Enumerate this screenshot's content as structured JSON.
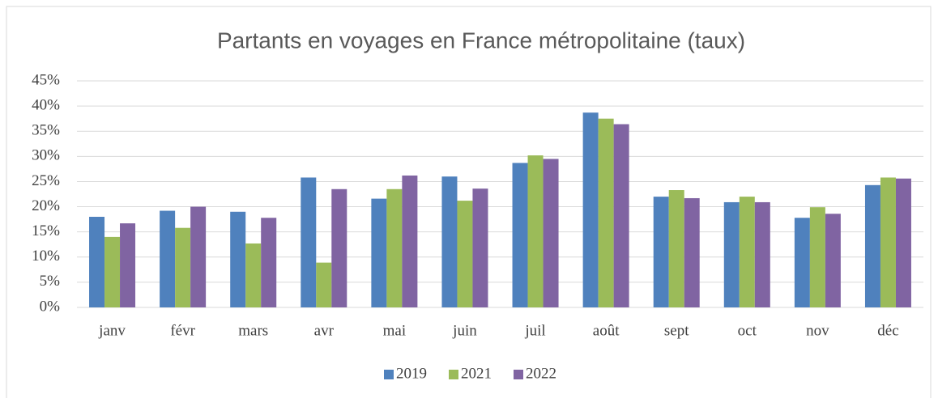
{
  "chart_data": {
    "type": "bar",
    "title": "Partants en voyages en France métropolitaine (taux)",
    "categories": [
      "janv",
      "févr",
      "mars",
      "avr",
      "mai",
      "juin",
      "juil",
      "août",
      "sept",
      "oct",
      "nov",
      "déc"
    ],
    "series": [
      {
        "name": "2019",
        "color": "#4f81bd",
        "values": [
          18,
          19.2,
          19,
          25.8,
          21.6,
          26,
          28.7,
          38.7,
          22,
          20.9,
          17.8,
          24.3
        ]
      },
      {
        "name": "2021",
        "color": "#9bbb59",
        "values": [
          14,
          15.8,
          12.7,
          8.9,
          23.5,
          21.2,
          30.2,
          37.5,
          23.3,
          22,
          19.9,
          25.8
        ]
      },
      {
        "name": "2022",
        "color": "#8064a2",
        "values": [
          16.7,
          20,
          17.8,
          23.5,
          26.2,
          23.6,
          29.5,
          36.4,
          21.7,
          20.9,
          18.6,
          25.6
        ]
      }
    ],
    "ylim": [
      0,
      45
    ],
    "yticks": [
      {
        "value": 0,
        "label": "0%"
      },
      {
        "value": 5,
        "label": "5%"
      },
      {
        "value": 10,
        "label": "10%"
      },
      {
        "value": 15,
        "label": "15%"
      },
      {
        "value": 20,
        "label": "20%"
      },
      {
        "value": 25,
        "label": "25%"
      },
      {
        "value": 30,
        "label": "30%"
      },
      {
        "value": 35,
        "label": "35%"
      },
      {
        "value": 40,
        "label": "40%"
      },
      {
        "value": 45,
        "label": "45%"
      }
    ],
    "grid": true,
    "legend": "bottom"
  }
}
